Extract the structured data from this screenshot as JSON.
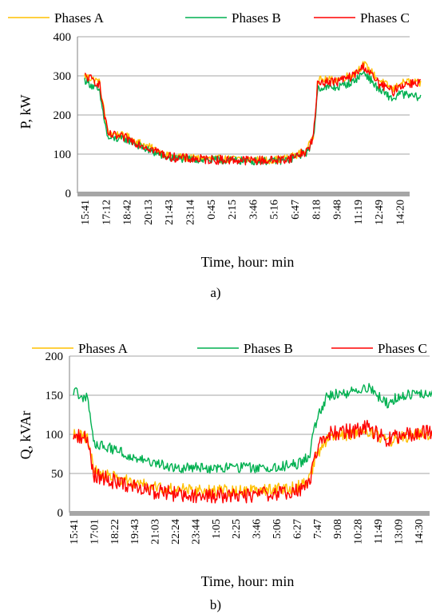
{
  "chart_data": [
    {
      "type": "line",
      "caption": "a)",
      "xlabel": "Time, hour: min",
      "ylabel": "P, kW",
      "ylim": [
        0,
        400
      ],
      "yticks": [
        0,
        100,
        200,
        300,
        400
      ],
      "xtick_labels": [
        "15:41",
        "17:12",
        "18:42",
        "20:13",
        "21:43",
        "23:14",
        "0:45",
        "2:15",
        "3:46",
        "5:16",
        "6:47",
        "8:18",
        "9:48",
        "11:19",
        "12:49",
        "14:20"
      ],
      "grid": "horizontal",
      "legend_position": "top",
      "series": [
        {
          "name": "Phases A",
          "color": "#FFC000",
          "profile": [
            [
              0,
              300
            ],
            [
              0.7,
              285
            ],
            [
              1.1,
              155
            ],
            [
              2,
              145
            ],
            [
              3,
              120
            ],
            [
              4,
              95
            ],
            [
              5,
              90
            ],
            [
              6,
              88
            ],
            [
              7,
              87
            ],
            [
              8,
              85
            ],
            [
              9,
              85
            ],
            [
              9.7,
              90
            ],
            [
              10.6,
              110
            ],
            [
              10.9,
              150
            ],
            [
              11.1,
              290
            ],
            [
              12,
              290
            ],
            [
              12.8,
              305
            ],
            [
              13.3,
              330
            ],
            [
              14,
              290
            ],
            [
              14.7,
              265
            ],
            [
              15,
              280
            ],
            [
              15.4,
              285
            ],
            [
              16,
              280
            ]
          ],
          "noise": 10
        },
        {
          "name": "Phases B",
          "color": "#00B050",
          "profile": [
            [
              0,
              290
            ],
            [
              0.7,
              260
            ],
            [
              1.1,
              140
            ],
            [
              2,
              138
            ],
            [
              3,
              110
            ],
            [
              4,
              90
            ],
            [
              5,
              87
            ],
            [
              6,
              85
            ],
            [
              7,
              84
            ],
            [
              8,
              82
            ],
            [
              9,
              82
            ],
            [
              9.7,
              85
            ],
            [
              10.6,
              105
            ],
            [
              10.9,
              140
            ],
            [
              11.1,
              270
            ],
            [
              12,
              270
            ],
            [
              12.8,
              285
            ],
            [
              13.3,
              310
            ],
            [
              14,
              265
            ],
            [
              14.7,
              240
            ],
            [
              15,
              255
            ],
            [
              15.4,
              250
            ],
            [
              16,
              245
            ]
          ],
          "noise": 10
        },
        {
          "name": "Phases C",
          "color": "#FF0000",
          "profile": [
            [
              0,
              300
            ],
            [
              0.7,
              280
            ],
            [
              1.1,
              150
            ],
            [
              2,
              140
            ],
            [
              3,
              118
            ],
            [
              4,
              93
            ],
            [
              5,
              88
            ],
            [
              6,
              86
            ],
            [
              7,
              85
            ],
            [
              8,
              84
            ],
            [
              9,
              84
            ],
            [
              9.7,
              88
            ],
            [
              10.6,
              108
            ],
            [
              10.9,
              145
            ],
            [
              11.1,
              285
            ],
            [
              12,
              285
            ],
            [
              12.8,
              300
            ],
            [
              13.3,
              325
            ],
            [
              14,
              280
            ],
            [
              14.7,
              260
            ],
            [
              15,
              275
            ],
            [
              15.4,
              280
            ],
            [
              16,
              285
            ]
          ],
          "noise": 12
        }
      ]
    },
    {
      "type": "line",
      "caption": "b)",
      "xlabel": "Time, hour: min",
      "ylabel": "Q, kVAr",
      "ylim": [
        0,
        200
      ],
      "yticks": [
        0,
        50,
        100,
        150,
        200
      ],
      "xtick_labels": [
        "15:41",
        "17:01",
        "18:22",
        "19:43",
        "21:03",
        "22:24",
        "23:44",
        "1:05",
        "2:25",
        "3:46",
        "5:06",
        "6:27",
        "7:47",
        "9:08",
        "10:28",
        "11:49",
        "13:09",
        "14:30"
      ],
      "grid": "horizontal",
      "legend_position": "top",
      "series": [
        {
          "name": "Phases A",
          "color": "#FFC000",
          "profile": [
            [
              0,
              100
            ],
            [
              0.7,
              95
            ],
            [
              1,
              55
            ],
            [
              2,
              45
            ],
            [
              3,
              38
            ],
            [
              4,
              32
            ],
            [
              5,
              30
            ],
            [
              6,
              28
            ],
            [
              7,
              28
            ],
            [
              8,
              28
            ],
            [
              9,
              28
            ],
            [
              10,
              30
            ],
            [
              11,
              32
            ],
            [
              11.6,
              40
            ],
            [
              12,
              75
            ],
            [
              12.5,
              95
            ],
            [
              13,
              98
            ],
            [
              14,
              102
            ],
            [
              14.5,
              105
            ],
            [
              15,
              97
            ],
            [
              15.5,
              90
            ],
            [
              16,
              95
            ],
            [
              17,
              100
            ],
            [
              18,
              98
            ]
          ],
          "noise": 8
        },
        {
          "name": "Phases B",
          "color": "#00B050",
          "profile": [
            [
              0,
              155
            ],
            [
              0.7,
              145
            ],
            [
              1,
              90
            ],
            [
              2,
              80
            ],
            [
              3,
              70
            ],
            [
              4,
              62
            ],
            [
              5,
              58
            ],
            [
              6,
              58
            ],
            [
              7,
              57
            ],
            [
              8,
              57
            ],
            [
              9,
              57
            ],
            [
              10,
              58
            ],
            [
              11,
              62
            ],
            [
              11.6,
              70
            ],
            [
              12,
              120
            ],
            [
              12.5,
              150
            ],
            [
              13,
              152
            ],
            [
              14,
              155
            ],
            [
              14.5,
              160
            ],
            [
              15,
              150
            ],
            [
              15.5,
              140
            ],
            [
              16,
              148
            ],
            [
              17,
              152
            ],
            [
              18,
              152
            ]
          ],
          "noise": 7
        },
        {
          "name": "Phases C",
          "color": "#FF0000",
          "profile": [
            [
              0,
              100
            ],
            [
              0.7,
              95
            ],
            [
              1,
              48
            ],
            [
              2,
              40
            ],
            [
              3,
              32
            ],
            [
              4,
              27
            ],
            [
              5,
              24
            ],
            [
              6,
              22
            ],
            [
              7,
              22
            ],
            [
              8,
              22
            ],
            [
              9,
              22
            ],
            [
              10,
              24
            ],
            [
              11,
              27
            ],
            [
              11.6,
              35
            ],
            [
              12,
              80
            ],
            [
              12.5,
              100
            ],
            [
              13,
              102
            ],
            [
              14,
              105
            ],
            [
              14.5,
              110
            ],
            [
              15,
              100
            ],
            [
              15.5,
              92
            ],
            [
              16,
              98
            ],
            [
              17,
              102
            ],
            [
              18,
              102
            ]
          ],
          "noise": 10
        }
      ]
    }
  ]
}
